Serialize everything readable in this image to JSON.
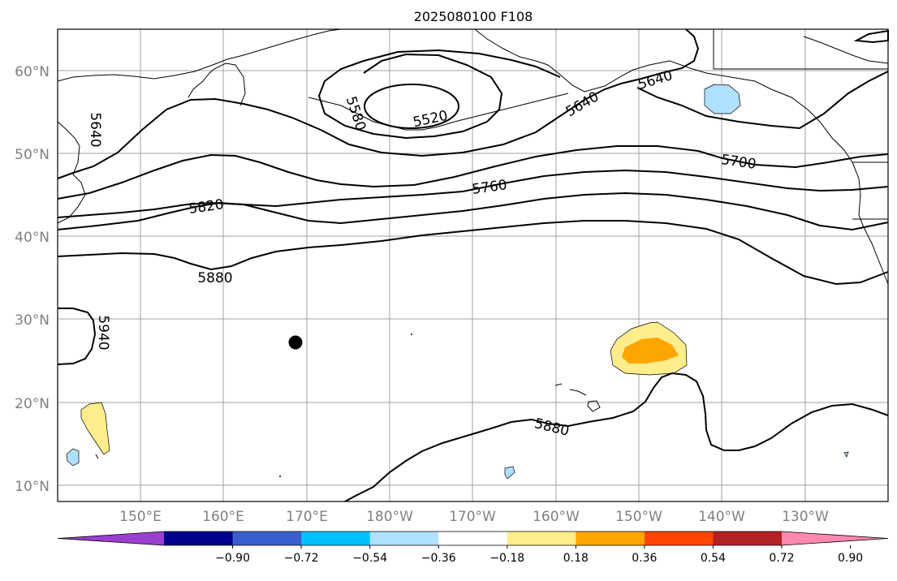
{
  "title": "2025080100 F108",
  "lat_labels": [
    "60°N",
    "50°N",
    "40°N",
    "30°N",
    "20°N",
    "10°N"
  ],
  "lon_labels": [
    "150°E",
    "160°E",
    "170°E",
    "180°W",
    "170°W",
    "160°W",
    "150°W",
    "140°W",
    "130°W"
  ],
  "contour_labels": [
    "5520",
    "5580",
    "5640",
    "5640",
    "5640",
    "5700",
    "5760",
    "5820",
    "5880",
    "5880",
    "5940"
  ],
  "colorbar": {
    "tick_labels": [
      "−0.90",
      "−0.72",
      "−0.54",
      "−0.36",
      "−0.18",
      "0.18",
      "0.36",
      "0.54",
      "0.72",
      "0.90"
    ],
    "colors": [
      "#9a3fcf",
      "#00008b",
      "#3a5fcd",
      "#00bfff",
      "#b0e0ff",
      "#ffffff",
      "#ffec8b",
      "#ffa500",
      "#ff4500",
      "#b22222",
      "#ff88b0"
    ]
  },
  "marker": {
    "label": "",
    "type": "black-dot"
  },
  "map_features": {
    "lows": [
      "5520"
    ],
    "shaded_positive_area": "subtropical north pacific",
    "shaded_negative_area": "gulf of alaska"
  }
}
